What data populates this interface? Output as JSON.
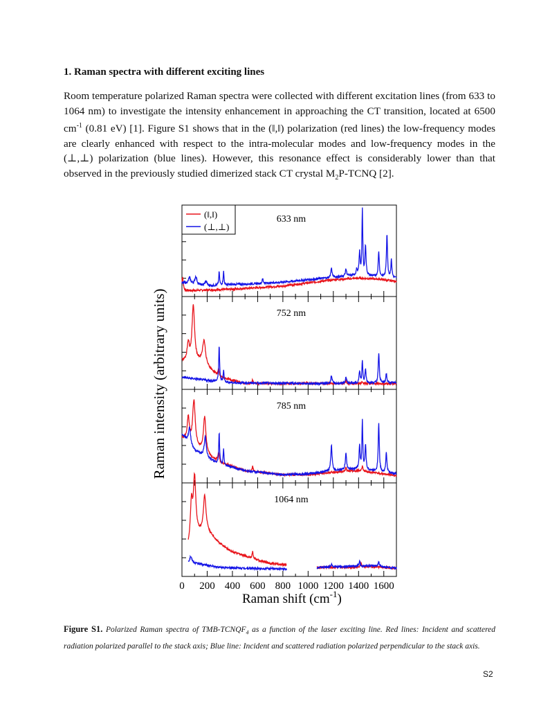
{
  "section": {
    "heading": "1. Raman spectra with different exciting lines"
  },
  "paragraph": {
    "p1": "Room temperature polarized Raman spectra were collected with different excitation lines (from 633 to 1064 nm) to investigate the intensity enhancement in approaching the CT transition, located at 6500 cm",
    "sup1": "-1",
    "p2": " (0.81 eV) [1]. Figure S1 shows that in the (‖,‖) polarization (red lines) the low-frequency modes are clearly enhanced with respect to the intra-molecular modes and low-frequency modes in the (⊥,⊥) polarization (blue lines). However, this resonance effect is considerably lower than that observed in the previously studied dimerized stack CT crystal M",
    "sub1": "2",
    "p3": "P-TCNQ [2]."
  },
  "caption": {
    "label": "Figure S1.",
    "t1": " Polarized Raman spectra of TMB-TCNQF",
    "sub": "4",
    "t2": " as a function of the laser exciting line. Red lines: Incident and scattered radiation polarized parallel to the stack axis; Blue line: Incident and scattered radiation polarized perpendicular to the stack axis."
  },
  "page_number": "S2",
  "colors": {
    "parallel": "#e8141b",
    "perpendicular": "#1414e6"
  },
  "chart_data": {
    "type": "line",
    "xlabel_main": "Raman shift (cm",
    "xlabel_sup": "-1",
    "xlabel_close": ")",
    "ylabel": "Raman intensity (arbitrary units)",
    "xlim": [
      0,
      1700
    ],
    "x_ticks": [
      0,
      200,
      400,
      600,
      800,
      1000,
      1200,
      1400,
      1600
    ],
    "legend": [
      {
        "label": "(‖,‖)",
        "color": "#e8141b"
      },
      {
        "label": "(⊥,⊥)",
        "color": "#1414e6"
      }
    ],
    "panels": [
      {
        "label": "633 nm",
        "series": {
          "parallel": {
            "base": [
              [
                0,
                0.02
              ],
              [
                200,
                0.03
              ],
              [
                400,
                0.04
              ],
              [
                600,
                0.06
              ],
              [
                800,
                0.08
              ],
              [
                1000,
                0.12
              ],
              [
                1200,
                0.16
              ],
              [
                1400,
                0.18
              ],
              [
                1550,
                0.17
              ],
              [
                1700,
                0.14
              ]
            ],
            "peaks": [
              [
                5,
                0.18,
                6
              ]
            ]
          },
          "perpendicular": {
            "base": [
              [
                0,
                0.12
              ],
              [
                200,
                0.08
              ],
              [
                400,
                0.1
              ],
              [
                600,
                0.11
              ],
              [
                800,
                0.13
              ],
              [
                1000,
                0.16
              ],
              [
                1200,
                0.19
              ],
              [
                1400,
                0.22
              ],
              [
                1700,
                0.18
              ]
            ],
            "peaks": [
              [
                60,
                0.08,
                10
              ],
              [
                110,
                0.1,
                10
              ],
              [
                190,
                0.06,
                10
              ],
              [
                295,
                0.17,
                4
              ],
              [
                330,
                0.17,
                4
              ],
              [
                640,
                0.06,
                5
              ],
              [
                1185,
                0.12,
                6
              ],
              [
                1300,
                0.09,
                6
              ],
              [
                1385,
                0.07,
                5
              ],
              [
                1408,
                0.28,
                5
              ],
              [
                1430,
                0.82,
                4
              ],
              [
                1455,
                0.38,
                5
              ],
              [
                1560,
                0.32,
                5
              ],
              [
                1625,
                0.55,
                5
              ],
              [
                1660,
                0.22,
                5
              ]
            ]
          }
        }
      },
      {
        "label": "752 nm",
        "series": {
          "parallel": {
            "base": [
              [
                0,
                0.3
              ],
              [
                150,
                0.28
              ],
              [
                300,
                0.1
              ],
              [
                500,
                0.02
              ],
              [
                1700,
                0.02
              ]
            ],
            "peaks": [
              [
                50,
                0.22,
                10
              ],
              [
                90,
                0.7,
                12
              ],
              [
                175,
                0.3,
                14
              ],
              [
                290,
                0.08,
                6
              ],
              [
                560,
                0.05,
                4
              ],
              [
                990,
                0.02,
                4
              ],
              [
                1300,
                0.04,
                6
              ],
              [
                1430,
                0.03,
                6
              ]
            ]
          },
          "perpendicular": {
            "base": [
              [
                0,
                0.1
              ],
              [
                200,
                0.06
              ],
              [
                400,
                0.03
              ],
              [
                1200,
                0.02
              ],
              [
                1700,
                0.03
              ]
            ],
            "peaks": [
              [
                295,
                0.45,
                4
              ],
              [
                330,
                0.15,
                4
              ],
              [
                1185,
                0.1,
                6
              ],
              [
                1300,
                0.08,
                6
              ],
              [
                1408,
                0.15,
                5
              ],
              [
                1430,
                0.28,
                4
              ],
              [
                1455,
                0.18,
                5
              ],
              [
                1560,
                0.38,
                5
              ],
              [
                1620,
                0.12,
                5
              ]
            ]
          }
        }
      },
      {
        "label": "785 nm",
        "series": {
          "parallel": {
            "base": [
              [
                0,
                0.5
              ],
              [
                100,
                0.4
              ],
              [
                200,
                0.28
              ],
              [
                300,
                0.2
              ],
              [
                500,
                0.1
              ],
              [
                800,
                0.05
              ],
              [
                1000,
                0.05
              ],
              [
                1200,
                0.08
              ],
              [
                1400,
                0.1
              ],
              [
                1700,
                0.04
              ]
            ],
            "peaks": [
              [
                50,
                0.3,
                10
              ],
              [
                95,
                0.55,
                12
              ],
              [
                180,
                0.45,
                12
              ],
              [
                290,
                0.12,
                6
              ],
              [
                560,
                0.08,
                4
              ],
              [
                1300,
                0.05,
                6
              ],
              [
                1430,
                0.06,
                6
              ]
            ]
          },
          "perpendicular": {
            "base": [
              [
                0,
                0.55
              ],
              [
                100,
                0.35
              ],
              [
                200,
                0.25
              ],
              [
                300,
                0.18
              ],
              [
                500,
                0.1
              ],
              [
                800,
                0.05
              ],
              [
                1000,
                0.06
              ],
              [
                1200,
                0.1
              ],
              [
                1400,
                0.12
              ],
              [
                1700,
                0.06
              ]
            ],
            "peaks": [
              [
                60,
                0.2,
                10
              ],
              [
                185,
                0.25,
                10
              ],
              [
                295,
                0.38,
                4
              ],
              [
                330,
                0.2,
                4
              ],
              [
                1185,
                0.32,
                6
              ],
              [
                1300,
                0.2,
                6
              ],
              [
                1408,
                0.28,
                5
              ],
              [
                1430,
                0.6,
                4
              ],
              [
                1455,
                0.3,
                5
              ],
              [
                1560,
                0.6,
                5
              ],
              [
                1620,
                0.25,
                5
              ]
            ]
          }
        }
      },
      {
        "label": "1064 nm",
        "series": {
          "parallel": {
            "base": [
              [
                50,
                0.3
              ],
              [
                100,
                0.45
              ],
              [
                200,
                0.5
              ],
              [
                300,
                0.35
              ],
              [
                400,
                0.25
              ],
              [
                500,
                0.2
              ],
              [
                600,
                0.15
              ],
              [
                700,
                0.11
              ],
              [
                830,
                0.09
              ]
            ],
            "gap": [
              830,
              1070
            ],
            "base2": [
              [
                1070,
                0.06
              ],
              [
                1300,
                0.06
              ],
              [
                1500,
                0.07
              ],
              [
                1700,
                0.05
              ]
            ],
            "peaks": [
              [
                75,
                0.45,
                10
              ],
              [
                100,
                0.7,
                12
              ],
              [
                180,
                0.45,
                12
              ],
              [
                560,
                0.1,
                4
              ],
              [
                1420,
                0.04,
                6
              ]
            ]
          },
          "perpendicular": {
            "base": [
              [
                50,
                0.12
              ],
              [
                150,
                0.1
              ],
              [
                300,
                0.06
              ],
              [
                500,
                0.05
              ],
              [
                830,
                0.04
              ]
            ],
            "gap": [
              830,
              1070
            ],
            "base2": [
              [
                1070,
                0.06
              ],
              [
                1300,
                0.07
              ],
              [
                1500,
                0.08
              ],
              [
                1700,
                0.05
              ]
            ],
            "peaks": [
              [
                70,
                0.08,
                10
              ],
              [
                1185,
                0.04,
                6
              ],
              [
                1408,
                0.06,
                5
              ],
              [
                1560,
                0.06,
                5
              ]
            ]
          }
        }
      }
    ]
  }
}
